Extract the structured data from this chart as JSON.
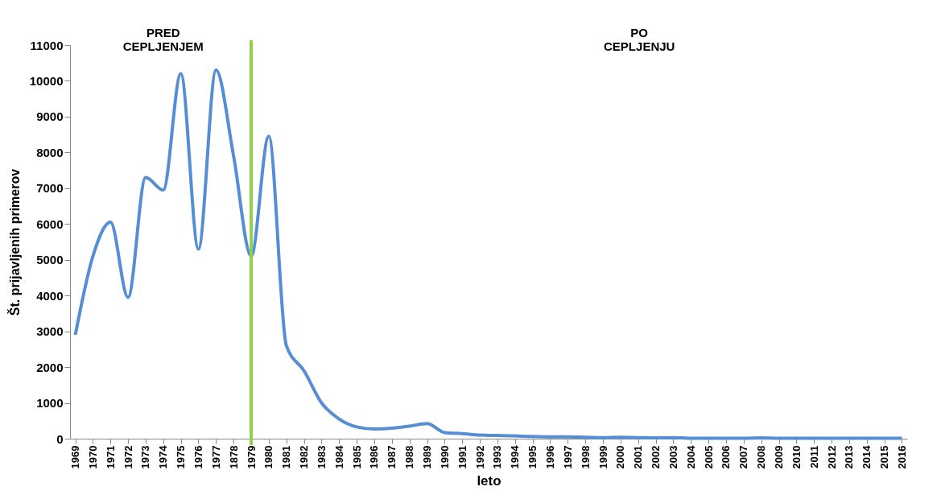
{
  "chart_data": {
    "type": "line",
    "xlabel": "leto",
    "ylabel": "Št. prijavljenih primerov",
    "categories": [
      "1969",
      "1970",
      "1971",
      "1972",
      "1973",
      "1974",
      "1975",
      "1976",
      "1977",
      "1878",
      "1979",
      "1980",
      "1981",
      "1982",
      "1983",
      "1984",
      "1985",
      "1986",
      "1987",
      "1988",
      "1989",
      "1990",
      "1991",
      "1992",
      "1993",
      "1994",
      "1995",
      "1996",
      "1997",
      "1998",
      "1999",
      "2000",
      "2001",
      "2002",
      "2003",
      "2004",
      "2005",
      "2006",
      "2007",
      "2008",
      "2009",
      "2010",
      "2011",
      "2012",
      "2013",
      "2014",
      "2015",
      "2016"
    ],
    "series": [
      {
        "color": "#558ed5",
        "values": [
          2900,
          5100,
          6050,
          3950,
          7300,
          6950,
          10200,
          5300,
          10300,
          7900,
          5100,
          8450,
          2600,
          1900,
          1000,
          550,
          330,
          270,
          290,
          350,
          420,
          170,
          140,
          100,
          90,
          80,
          60,
          50,
          50,
          40,
          30,
          40,
          30,
          20,
          30,
          10,
          10,
          10,
          10,
          20,
          10,
          10,
          10,
          10,
          10,
          10,
          10,
          10
        ]
      }
    ],
    "ylim": [
      0,
      11000
    ],
    "yticks": [
      0,
      1000,
      2000,
      3000,
      4000,
      5000,
      6000,
      7000,
      8000,
      9000,
      10000,
      11000
    ],
    "grid": false,
    "marker": "none",
    "line_style": "solid",
    "ref_lines": [
      {
        "axis": "x",
        "value": "1979",
        "color": "#92d050"
      }
    ],
    "annotations": [
      "PRED CEPLJENJEM",
      "PO CEPLJENJU"
    ]
  }
}
